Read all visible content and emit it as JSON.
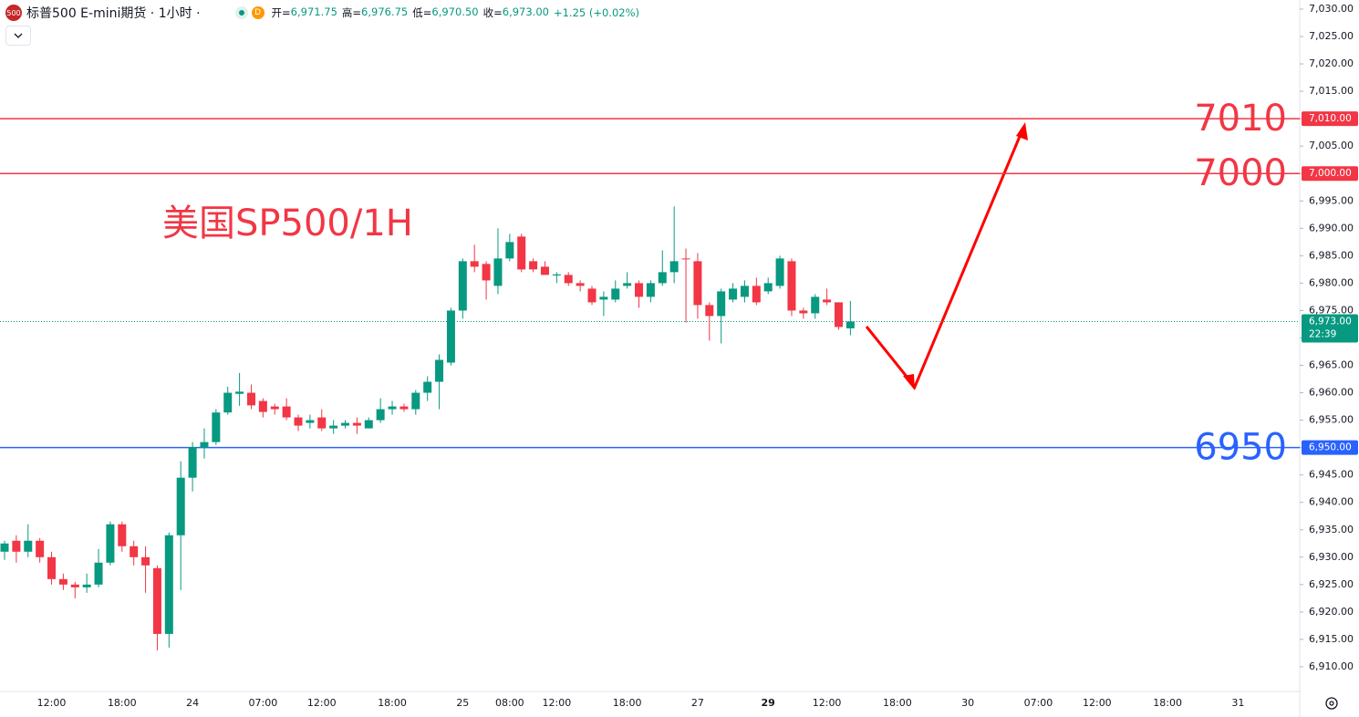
{
  "chart_data": {
    "type": "candlestick",
    "header": {
      "badge": "500",
      "symbol": "标普500 E-mini期货 · 1小时 ·",
      "source_badge": "D",
      "ohlc": [
        {
          "label": "开=",
          "value": "6,971.75"
        },
        {
          "label": "高=",
          "value": "6,976.75"
        },
        {
          "label": "低=",
          "value": "6,970.50"
        },
        {
          "label": "收=",
          "value": "6,973.00"
        }
      ],
      "change": "+1.25 (+0.02%)"
    },
    "annotation": "美国SP500/1H",
    "up_color": "#089981",
    "down_color": "#f23645",
    "categories": [
      null,
      null,
      null,
      null,
      "12:00",
      null,
      null,
      null,
      null,
      null,
      "18:00",
      null,
      null,
      null,
      null,
      null,
      "24",
      null,
      null,
      null,
      null,
      null,
      "07:00",
      null,
      null,
      null,
      null,
      "12:00",
      null,
      null,
      null,
      null,
      null,
      "18:00",
      null,
      null,
      null,
      null,
      null,
      "25",
      null,
      null,
      null,
      "08:00",
      null,
      null,
      null,
      "12:00",
      null,
      null,
      null,
      null,
      null,
      "18:00",
      null,
      null,
      null,
      null,
      null,
      "27",
      null,
      null,
      null,
      null,
      null,
      "29",
      null,
      null,
      null,
      null,
      "12:00",
      null,
      null,
      null,
      null,
      null,
      "18:00",
      null,
      null,
      null,
      null,
      null,
      "30",
      null,
      null,
      null,
      null,
      null,
      "07:00",
      null,
      null,
      null,
      null,
      "12:00",
      null,
      null,
      null,
      null,
      null,
      "18:00",
      null,
      null,
      null,
      null,
      null,
      "31",
      null,
      null,
      null,
      null,
      null
    ],
    "open": [
      6931,
      6933,
      6931,
      6933,
      6930,
      6926,
      6925,
      6924.5,
      6925,
      6929,
      6936,
      6932,
      6930,
      6928,
      6916,
      6934,
      6944.5,
      6950,
      6951,
      6956.4,
      6959.8,
      6960,
      6958.5,
      6957.5,
      6957.5,
      6955.5,
      6954.5,
      6955.5,
      6953.5,
      6954,
      6954.5,
      6953.5,
      6955,
      6957,
      6957.5,
      6957,
      6960,
      6962,
      6965.5,
      6975,
      6984,
      6983.5,
      6979.5,
      6984.5,
      6988.5,
      6984,
      6983,
      6981.4,
      6981.5,
      6980,
      6979,
      6977,
      6977,
      6979.5,
      6980,
      6977.5,
      6980,
      6982,
      6984.5,
      6984,
      6976,
      6974,
      6977,
      6977.5,
      6979.5,
      6978.5,
      6979.5,
      6984,
      6975,
      6974.5,
      6977,
      6976.5,
      6971.75,
      null,
      null,
      null,
      null,
      null,
      null,
      null,
      null,
      null,
      null,
      null,
      null,
      null,
      null,
      null,
      null,
      null,
      null,
      null,
      null,
      null,
      null,
      null,
      null,
      null,
      null,
      null,
      null,
      null,
      null,
      null,
      null,
      null,
      null,
      null,
      null,
      null,
      null
    ],
    "high": [
      6933,
      6934,
      6936,
      6933.5,
      6931,
      6927,
      6925.5,
      6927,
      6931.5,
      6936.5,
      6936.5,
      6933,
      6932,
      6928.5,
      6934.5,
      6947.5,
      6951,
      6953.5,
      6957,
      6961.1,
      6963.6,
      6961.5,
      6959,
      6958,
      6959,
      6956,
      6956,
      6957,
      6955,
      6955,
      6955.5,
      6955.5,
      6959,
      6958.5,
      6958,
      6960.5,
      6963,
      6967,
      6975.5,
      6984.5,
      6987,
      6984,
      6990,
      6989,
      6989,
      6984.5,
      6984,
      6982,
      6982,
      6980.5,
      6979.5,
      6978.5,
      6980.5,
      6982,
      6980.5,
      6980.5,
      6986,
      6994,
      6986.3,
      6985.5,
      6976.5,
      6979,
      6980,
      6980.5,
      6981,
      6981,
      6985,
      6984.5,
      6975.5,
      6978,
      6979,
      6976.5,
      6976.75,
      null,
      null,
      null,
      null,
      null,
      null,
      null,
      null,
      null,
      null,
      null,
      null,
      null,
      null,
      null,
      null,
      null,
      null,
      null,
      null,
      null,
      null,
      null,
      null,
      null,
      null,
      null,
      null,
      null,
      null,
      null,
      null,
      null,
      null,
      null,
      null,
      null,
      null
    ],
    "low": [
      6929.5,
      6929,
      6930,
      6929,
      6925,
      6924,
      6922.5,
      6923.5,
      6924.5,
      6928.5,
      6931,
      6928.5,
      6923.5,
      6913,
      6913.5,
      6924,
      6942,
      6948,
      6950.5,
      6956,
      6957.6,
      6957,
      6955.5,
      6956,
      6955,
      6953,
      6953.5,
      6953,
      6952.5,
      6953.5,
      6952.5,
      6953.5,
      6954.5,
      6956,
      6956.5,
      6956,
      6958.5,
      6957,
      6965,
      6973.5,
      6982,
      6977,
      6978,
      6984,
      6982,
      6982,
      6981.5,
      6980,
      6979.5,
      6978.5,
      6976,
      6974,
      6976.5,
      6979,
      6975.5,
      6976.5,
      6979.5,
      6980,
      6972.8,
      6973.5,
      6969.5,
      6969,
      6976.5,
      6976.5,
      6976,
      6978,
      6979,
      6974,
      6973.5,
      6973.5,
      6976,
      6971.5,
      6970.5,
      null,
      null,
      null,
      null,
      null,
      null,
      null,
      null,
      null,
      null,
      null,
      null,
      null,
      null,
      null,
      null,
      null,
      null,
      null,
      null,
      null,
      null,
      null,
      null,
      null,
      null,
      null,
      null,
      null,
      null,
      null,
      null,
      null,
      null,
      null,
      null,
      null,
      null
    ],
    "close": [
      6932.5,
      6931,
      6933,
      6930,
      6926,
      6925,
      6924.5,
      6925,
      6929,
      6936,
      6932,
      6930,
      6928.5,
      6916,
      6934,
      6944.5,
      6950.1,
      6951,
      6956.4,
      6960,
      6960.2,
      6957.7,
      6956.5,
      6957,
      6955.5,
      6954,
      6955,
      6953.5,
      6954,
      6954.5,
      6954,
      6955,
      6957,
      6957.5,
      6957,
      6960,
      6962,
      6966,
      6975,
      6984,
      6983,
      6980.5,
      6984.5,
      6987.5,
      6982.5,
      6982.5,
      6981.5,
      6981.6,
      6980,
      6979.5,
      6976.5,
      6977.5,
      6979,
      6980,
      6977.5,
      6980,
      6982,
      6984,
      6984.4,
      6976,
      6974,
      6978.5,
      6979,
      6979.5,
      6976.5,
      6980,
      6984.5,
      6975,
      6974.5,
      6977.5,
      6976.5,
      6972,
      6973,
      null,
      null,
      null,
      null,
      null,
      null,
      null,
      null,
      null,
      null,
      null,
      null,
      null,
      null,
      null,
      null,
      null,
      null,
      null,
      null,
      null,
      null,
      null,
      null,
      null,
      null,
      null,
      null,
      null,
      null,
      null,
      null,
      null,
      null,
      null,
      null,
      null,
      null
    ],
    "ylim": [
      6905.5,
      7031.66
    ],
    "yticks": [
      {
        "value": 6910,
        "label": "6,910.00"
      },
      {
        "value": 6915,
        "label": "6,915.00"
      },
      {
        "value": 6920,
        "label": "6,920.00"
      },
      {
        "value": 6925,
        "label": "6,925.00"
      },
      {
        "value": 6930,
        "label": "6,930.00"
      },
      {
        "value": 6935,
        "label": "6,935.00"
      },
      {
        "value": 6940,
        "label": "6,940.00"
      },
      {
        "value": 6945,
        "label": "6,945.00"
      },
      {
        "value": 6950,
        "label": "6,950.00"
      },
      {
        "value": 6955,
        "label": "6,955.00"
      },
      {
        "value": 6960,
        "label": "6,960.00"
      },
      {
        "value": 6965,
        "label": "6,965.00"
      },
      {
        "value": 6970,
        "label": "6,970.00"
      },
      {
        "value": 6975,
        "label": "6,975.00"
      },
      {
        "value": 6980,
        "label": "6,980.00"
      },
      {
        "value": 6985,
        "label": "6,985.00"
      },
      {
        "value": 6990,
        "label": "6,990.00"
      },
      {
        "value": 6995,
        "label": "6,995.00"
      },
      {
        "value": 7000,
        "label": "7,000.00"
      },
      {
        "value": 7005,
        "label": "7,005.00"
      },
      {
        "value": 7010,
        "label": "7,010.00"
      },
      {
        "value": 7015,
        "label": "7,015.00"
      },
      {
        "value": 7020,
        "label": "7,020.00"
      },
      {
        "value": 7025,
        "label": "7,025.00"
      },
      {
        "value": 7030,
        "label": "7,030.00"
      }
    ],
    "levels": [
      {
        "value": 7010,
        "label": "7010",
        "tag": "7,010.00",
        "color": "#f23645"
      },
      {
        "value": 7000,
        "label": "7000",
        "tag": "7,000.00",
        "color": "#f23645"
      },
      {
        "value": 6950,
        "label": "6950",
        "tag": "6,950.00",
        "color": "#2962ff"
      }
    ],
    "last_price": {
      "value": 6973,
      "label": "6,973.00",
      "countdown": "22:39",
      "color": "#089981"
    }
  }
}
